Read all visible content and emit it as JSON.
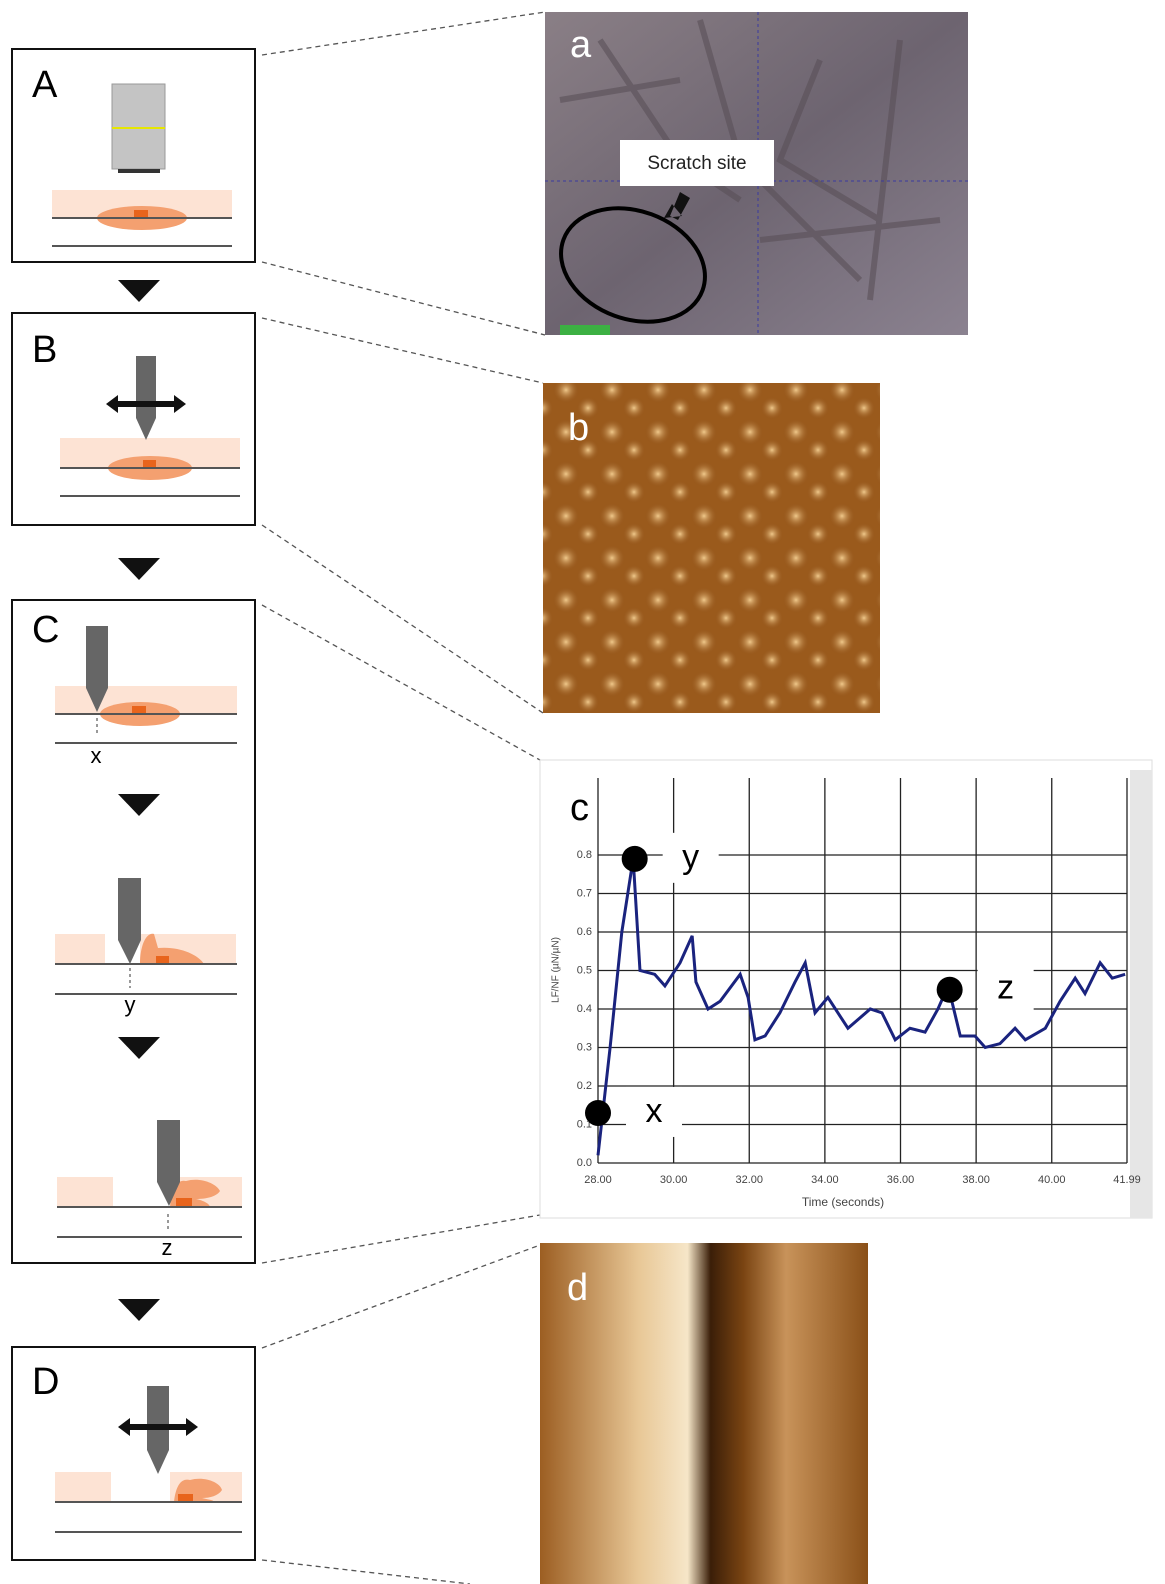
{
  "panels": [
    {
      "label": "A"
    },
    {
      "label": "B"
    },
    {
      "label": "C",
      "steps": [
        "x",
        "y",
        "z"
      ]
    },
    {
      "label": "D"
    }
  ],
  "images": [
    {
      "label": "a",
      "callout": "Scratch site"
    },
    {
      "label": "b"
    },
    {
      "label": "d"
    }
  ],
  "chart_data": {
    "type": "line",
    "panel_label": "c",
    "x_label": "Time (seconds)",
    "y_label": "LF/NF (µN/µN)",
    "color": "#1a237e",
    "x": [
      28.0,
      28.32,
      28.63,
      28.93,
      29.11,
      29.5,
      29.77,
      30.17,
      30.49,
      30.59,
      30.91,
      31.23,
      31.76,
      31.97,
      32.15,
      32.42,
      32.81,
      33.21,
      33.48,
      33.74,
      34.08,
      34.61,
      35.2,
      35.51,
      35.86,
      36.25,
      36.65,
      36.99,
      37.26,
      37.58,
      37.97,
      38.24,
      38.63,
      39.03,
      39.3,
      39.83,
      40.22,
      40.62,
      40.88,
      41.28,
      41.6,
      41.94
    ],
    "values": [
      0.02,
      0.3,
      0.6,
      0.79,
      0.5,
      0.49,
      0.46,
      0.52,
      0.59,
      0.47,
      0.4,
      0.42,
      0.49,
      0.43,
      0.32,
      0.33,
      0.39,
      0.47,
      0.52,
      0.39,
      0.43,
      0.35,
      0.4,
      0.39,
      0.32,
      0.35,
      0.34,
      0.4,
      0.46,
      0.33,
      0.33,
      0.3,
      0.31,
      0.35,
      0.32,
      0.35,
      0.42,
      0.48,
      0.44,
      0.52,
      0.48,
      0.49
    ],
    "markers": [
      {
        "label": "x",
        "x": 28.0,
        "y": 0.13
      },
      {
        "label": "y",
        "x": 28.97,
        "y": 0.79
      },
      {
        "label": "z",
        "x": 37.3,
        "y": 0.45
      }
    ],
    "xlim": [
      28,
      41.99
    ],
    "ylim": [
      0,
      1
    ],
    "xticks": [
      {
        "value": 28,
        "label": "28.00"
      },
      {
        "value": 30,
        "label": "30.00"
      },
      {
        "value": 32,
        "label": "32.00"
      },
      {
        "value": 34,
        "label": "34.00"
      },
      {
        "value": 36,
        "label": "36.00"
      },
      {
        "value": 38,
        "label": "38.00"
      },
      {
        "value": 40,
        "label": "40.00"
      },
      41.99
    ],
    "yticks": [
      {
        "value": 0,
        "label": "0.0"
      },
      0.1,
      0.2,
      0.3,
      0.4,
      0.5,
      0.6,
      0.7,
      0.8
    ],
    "grid": true
  }
}
